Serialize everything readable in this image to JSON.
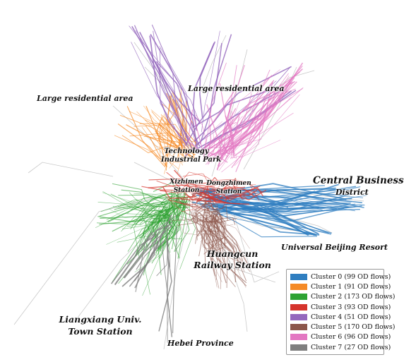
{
  "labels": {
    "large_res_west": "Large residential area",
    "large_res_north": "Large residential area",
    "tech_park_line1": "Technology",
    "tech_park_line2": "Industrial Park",
    "xizhimen_line1": "Xizhimen",
    "xizhimen_line2": "Station",
    "dongzhimen_line1": "Dongzhimen",
    "dongzhimen_line2": "Station",
    "cbd_line1": "Central Business",
    "cbd_line2": "District",
    "universal": "Universal Beijing Resort",
    "huangcun_line1": "Huangcun",
    "huangcun_line2": "Railway Station",
    "liangxiang_line1": "Liangxiang Univ.",
    "liangxiang_line2": "Town Station",
    "hebei": "Hebei Province"
  },
  "legend": [
    {
      "label": "Cluster 0 (99 OD flows)",
      "color": "#2f7ec0"
    },
    {
      "label": "Cluster 1 (91 OD flows)",
      "color": "#f58a26"
    },
    {
      "label": "Cluster 2 (173 OD flows)",
      "color": "#2ea232"
    },
    {
      "label": "Cluster 3 (93 OD flows)",
      "color": "#d5342c"
    },
    {
      "label": "Cluster 4 (51 OD flows)",
      "color": "#9467bd"
    },
    {
      "label": "Cluster 5 (170 OD flows)",
      "color": "#8c564b"
    },
    {
      "label": "Cluster 6 (96 OD flows)",
      "color": "#e377c2"
    },
    {
      "label": "Cluster 7 (27 OD flows)",
      "color": "#7f7f7f"
    }
  ]
}
